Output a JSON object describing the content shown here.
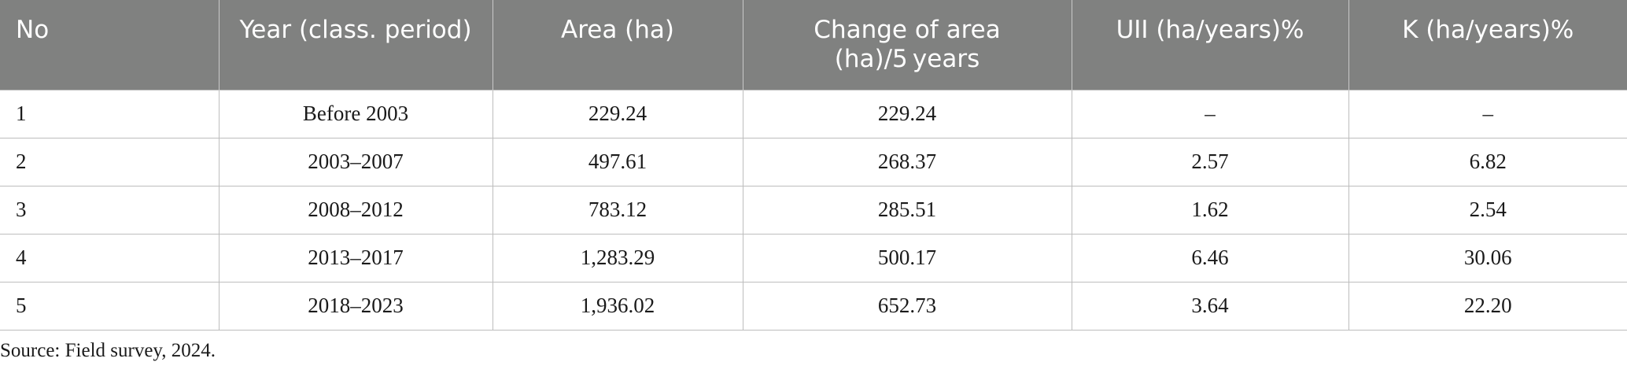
{
  "table": {
    "headers": [
      "No",
      "Year (class. period)",
      "Area (ha)",
      "Change of area (ha)/5 years",
      "UII (ha/years)%",
      "K (ha/years)%"
    ],
    "rows": [
      [
        "1",
        "Before 2003",
        "229.24",
        "229.24",
        "–",
        "–"
      ],
      [
        "2",
        "2003–2007",
        "497.61",
        "268.37",
        "2.57",
        "6.82"
      ],
      [
        "3",
        "2008–2012",
        "783.12",
        "285.51",
        "1.62",
        "2.54"
      ],
      [
        "4",
        "2013–2017",
        "1,283.29",
        "500.17",
        "6.46",
        "30.06"
      ],
      [
        "5",
        "2018–2023",
        "1,936.02",
        "652.73",
        "3.64",
        "22.20"
      ]
    ]
  },
  "footnote": "Source: Field survey, 2024.",
  "colors": {
    "header_bg": "#808180",
    "header_text": "#ffffff",
    "grid": "#bdbdbd"
  }
}
